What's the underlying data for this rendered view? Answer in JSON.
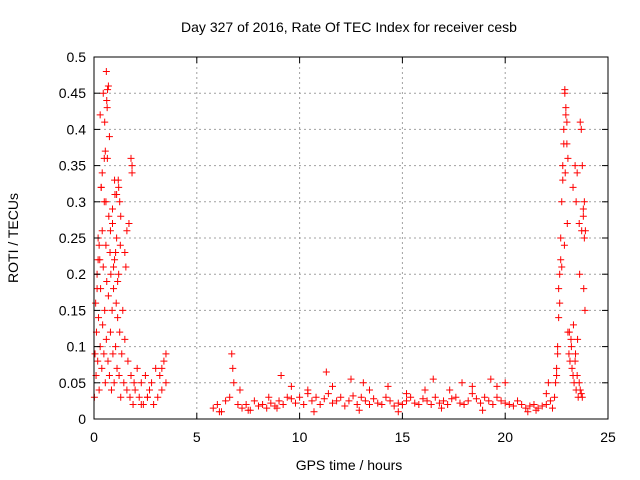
{
  "chart_data": {
    "type": "scatter",
    "title": "Day 327 of 2016, Rate Of TEC Index for receiver cesb",
    "xlabel": "GPS time / hours",
    "ylabel": "ROTI / TECUs",
    "xlim": [
      0,
      25
    ],
    "ylim": [
      0,
      0.5
    ],
    "x_ticks": [
      "0",
      "5",
      "10",
      "15",
      "20",
      "25"
    ],
    "x_tick_values": [
      0,
      5,
      10,
      15,
      20,
      25
    ],
    "y_ticks": [
      "0",
      "0.05",
      "0.1",
      "0.15",
      "0.2",
      "0.25",
      "0.3",
      "0.35",
      "0.4",
      "0.45",
      "0.5"
    ],
    "y_tick_values": [
      0,
      0.05,
      0.1,
      0.15,
      0.2,
      0.25,
      0.3,
      0.35,
      0.4,
      0.45,
      0.5
    ],
    "grid": true,
    "marker": "plus",
    "marker_color": "#ff0000",
    "series": [
      {
        "x": [
          0.02,
          0.05,
          0.08,
          0.1,
          0.12,
          0.15,
          0.18,
          0.2,
          0.22,
          0.25,
          0.28,
          0.3,
          0.32,
          0.35,
          0.38,
          0.4,
          0.42,
          0.45,
          0.48,
          0.5,
          0.52,
          0.55,
          0.58,
          0.6,
          0.62,
          0.65,
          0.68,
          0.7,
          0.72,
          0.75,
          0.78,
          0.8,
          0.82,
          0.85,
          0.88,
          0.9,
          0.92,
          0.95,
          0.98,
          1.0,
          1.02,
          1.05,
          1.08,
          1.1,
          1.12,
          1.15,
          1.18,
          1.2,
          1.22,
          1.25,
          1.28,
          1.3,
          1.35,
          1.4,
          1.45,
          1.5,
          1.55,
          1.6,
          1.65,
          1.7,
          1.75,
          1.8,
          1.85,
          1.9,
          1.95,
          2.0,
          2.1,
          2.2,
          2.3,
          2.4,
          2.5,
          2.6,
          2.7,
          2.8,
          2.9,
          3.0,
          3.1,
          3.2,
          3.3,
          3.4,
          3.5,
          0.3,
          0.45,
          0.6,
          0.62,
          0.64,
          0.7,
          0.75,
          0.66,
          0.55,
          0.5,
          0.4,
          0.35,
          0.52,
          0.58,
          0.9,
          1.0,
          1.1,
          1.2,
          1.25,
          1.3,
          1.8,
          1.85,
          1.6,
          1.5,
          0.15,
          0.2,
          0.25,
          0.8,
          0.95,
          1.05,
          1.15,
          2.3,
          2.6,
          3.3,
          3.5
        ],
        "y": [
          0.03,
          0.09,
          0.16,
          0.06,
          0.12,
          0.2,
          0.08,
          0.25,
          0.14,
          0.04,
          0.22,
          0.1,
          0.18,
          0.32,
          0.07,
          0.26,
          0.13,
          0.21,
          0.09,
          0.3,
          0.15,
          0.05,
          0.24,
          0.11,
          0.19,
          0.36,
          0.08,
          0.17,
          0.28,
          0.06,
          0.23,
          0.12,
          0.2,
          0.04,
          0.15,
          0.27,
          0.09,
          0.18,
          0.05,
          0.22,
          0.31,
          0.1,
          0.16,
          0.25,
          0.07,
          0.14,
          0.33,
          0.2,
          0.06,
          0.12,
          0.24,
          0.03,
          0.09,
          0.15,
          0.05,
          0.11,
          0.21,
          0.04,
          0.08,
          0.27,
          0.03,
          0.06,
          0.35,
          0.02,
          0.05,
          0.04,
          0.07,
          0.03,
          0.05,
          0.02,
          0.06,
          0.03,
          0.04,
          0.05,
          0.02,
          0.07,
          0.03,
          0.06,
          0.04,
          0.08,
          0.09,
          0.42,
          0.45,
          0.48,
          0.44,
          0.43,
          0.46,
          0.39,
          0.455,
          0.37,
          0.36,
          0.34,
          0.32,
          0.41,
          0.3,
          0.29,
          0.33,
          0.31,
          0.32,
          0.3,
          0.28,
          0.36,
          0.34,
          0.26,
          0.23,
          0.18,
          0.22,
          0.24,
          0.26,
          0.21,
          0.23,
          0.19,
          0.02,
          0.03,
          0.07,
          0.05
        ]
      },
      {
        "x": [
          5.8,
          6.0,
          6.2,
          6.4,
          6.6,
          6.8,
          7.0,
          7.2,
          7.4,
          7.6,
          7.8,
          8.0,
          8.2,
          8.4,
          8.6,
          8.8,
          9.0,
          9.2,
          9.4,
          9.6,
          9.8,
          10.0,
          10.2,
          10.4,
          10.6,
          10.8,
          11.0,
          11.2,
          11.4,
          11.6,
          11.8,
          12.0,
          12.2,
          12.4,
          12.6,
          12.8,
          13.0,
          13.2,
          13.4,
          13.6,
          13.8,
          14.0,
          14.2,
          14.4,
          14.6,
          14.8,
          15.0,
          15.2,
          15.4,
          15.6,
          15.8,
          16.0,
          16.2,
          16.4,
          16.6,
          16.8,
          17.0,
          17.2,
          17.4,
          17.6,
          17.8,
          18.0,
          18.2,
          18.4,
          18.6,
          18.8,
          19.0,
          19.2,
          19.4,
          19.6,
          19.8,
          20.0,
          20.2,
          20.4,
          20.6,
          20.8,
          21.0,
          21.2,
          21.4,
          21.6,
          21.8,
          22.0,
          22.2,
          6.7,
          6.75,
          7.1,
          8.5,
          9.1,
          9.6,
          10.4,
          11.3,
          11.6,
          12.5,
          13.1,
          13.4,
          14.3,
          15.2,
          16.1,
          16.5,
          17.3,
          17.9,
          18.4,
          19.3,
          19.6,
          20.0,
          6.1,
          7.5,
          8.9,
          10.7,
          12.9,
          14.8,
          16.9,
          18.9,
          21.1,
          21.5,
          22.0,
          22.1
        ],
        "y": [
          0.015,
          0.02,
          0.01,
          0.025,
          0.03,
          0.05,
          0.02,
          0.015,
          0.02,
          0.012,
          0.025,
          0.018,
          0.02,
          0.015,
          0.022,
          0.018,
          0.025,
          0.02,
          0.03,
          0.028,
          0.022,
          0.03,
          0.02,
          0.035,
          0.025,
          0.03,
          0.02,
          0.028,
          0.035,
          0.022,
          0.025,
          0.03,
          0.018,
          0.025,
          0.032,
          0.02,
          0.03,
          0.025,
          0.02,
          0.028,
          0.022,
          0.02,
          0.03,
          0.025,
          0.018,
          0.022,
          0.02,
          0.025,
          0.03,
          0.022,
          0.02,
          0.028,
          0.025,
          0.02,
          0.03,
          0.022,
          0.025,
          0.02,
          0.028,
          0.03,
          0.022,
          0.02,
          0.025,
          0.035,
          0.028,
          0.022,
          0.03,
          0.025,
          0.02,
          0.03,
          0.025,
          0.022,
          0.02,
          0.018,
          0.025,
          0.02,
          0.015,
          0.018,
          0.02,
          0.015,
          0.018,
          0.02,
          0.025,
          0.09,
          0.07,
          0.04,
          0.03,
          0.06,
          0.045,
          0.04,
          0.065,
          0.045,
          0.055,
          0.05,
          0.04,
          0.045,
          0.035,
          0.04,
          0.055,
          0.04,
          0.05,
          0.045,
          0.055,
          0.045,
          0.05,
          0.01,
          0.012,
          0.015,
          0.01,
          0.012,
          0.01,
          0.015,
          0.012,
          0.01,
          0.012,
          0.035,
          0.05
        ]
      },
      {
        "x": [
          22.3,
          22.4,
          22.45,
          22.5,
          22.55,
          22.6,
          22.65,
          22.7,
          22.75,
          22.8,
          22.85,
          22.9,
          22.95,
          23.0,
          23.05,
          23.1,
          23.15,
          23.2,
          23.25,
          23.3,
          23.35,
          23.4,
          23.45,
          23.5,
          23.55,
          23.6,
          23.65,
          23.7,
          23.75,
          23.8,
          23.85,
          23.9,
          22.6,
          22.7,
          22.8,
          22.85,
          22.9,
          22.95,
          23.0,
          23.05,
          23.3,
          23.4,
          23.45,
          23.5,
          23.6,
          23.65,
          23.7,
          23.75,
          23.8,
          23.85,
          22.5,
          22.55,
          22.65,
          22.75,
          22.88,
          22.92,
          23.02,
          23.12,
          23.22,
          23.32,
          23.42,
          23.52,
          23.62,
          23.72,
          23.82,
          23.88
        ],
        "y": [
          0.015,
          0.03,
          0.05,
          0.07,
          0.1,
          0.14,
          0.2,
          0.25,
          0.3,
          0.35,
          0.4,
          0.45,
          0.42,
          0.38,
          0.12,
          0.09,
          0.08,
          0.11,
          0.07,
          0.06,
          0.05,
          0.08,
          0.04,
          0.06,
          0.03,
          0.05,
          0.04,
          0.035,
          0.03,
          0.28,
          0.3,
          0.26,
          0.18,
          0.22,
          0.33,
          0.38,
          0.455,
          0.43,
          0.41,
          0.36,
          0.32,
          0.35,
          0.3,
          0.34,
          0.27,
          0.41,
          0.4,
          0.35,
          0.29,
          0.25,
          0.06,
          0.09,
          0.16,
          0.21,
          0.24,
          0.34,
          0.27,
          0.12,
          0.1,
          0.13,
          0.09,
          0.11,
          0.2,
          0.26,
          0.18,
          0.15
        ]
      }
    ]
  }
}
